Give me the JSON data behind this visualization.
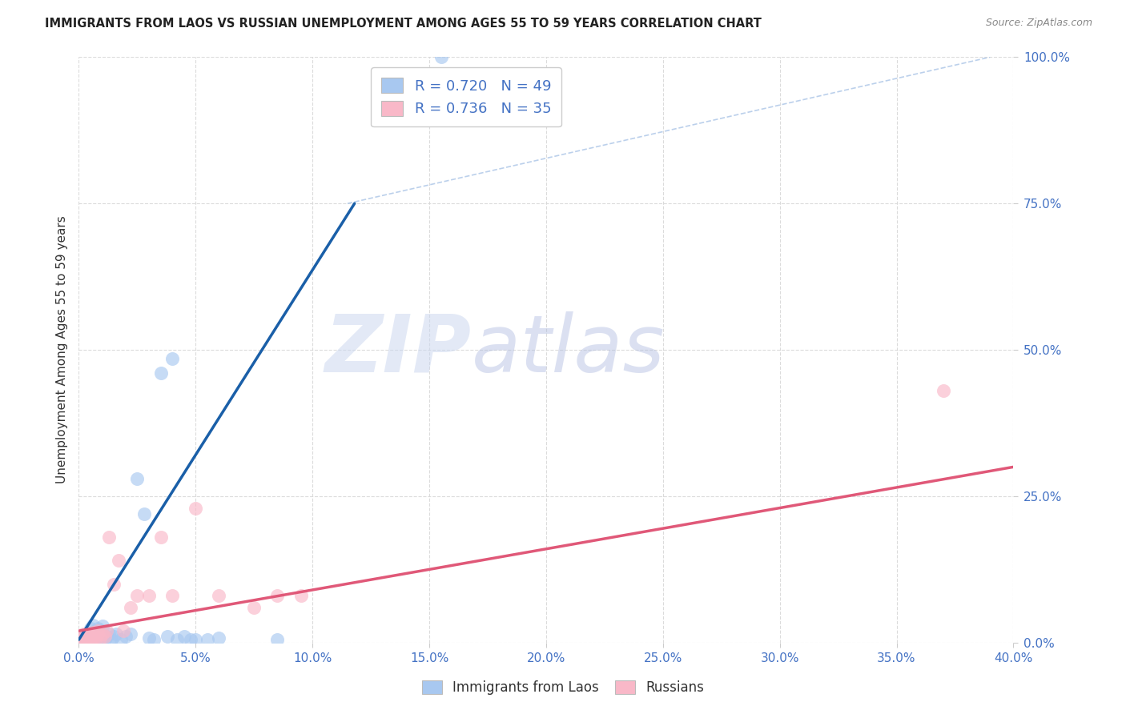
{
  "title": "IMMIGRANTS FROM LAOS VS RUSSIAN UNEMPLOYMENT AMONG AGES 55 TO 59 YEARS CORRELATION CHART",
  "source": "Source: ZipAtlas.com",
  "ylabel": "Unemployment Among Ages 55 to 59 years",
  "legend_entries": [
    {
      "label": "R = 0.720   N = 49",
      "color": "#a8c8f0"
    },
    {
      "label": "R = 0.736   N = 35",
      "color": "#f9b8c8"
    }
  ],
  "legend_labels": [
    "Immigrants from Laos",
    "Russians"
  ],
  "blue_scatter_x": [
    0.001,
    0.001,
    0.002,
    0.002,
    0.002,
    0.003,
    0.003,
    0.003,
    0.003,
    0.004,
    0.004,
    0.004,
    0.005,
    0.005,
    0.005,
    0.006,
    0.006,
    0.007,
    0.007,
    0.008,
    0.008,
    0.009,
    0.009,
    0.01,
    0.01,
    0.011,
    0.012,
    0.013,
    0.014,
    0.015,
    0.016,
    0.018,
    0.02,
    0.022,
    0.025,
    0.028,
    0.03,
    0.032,
    0.035,
    0.038,
    0.04,
    0.042,
    0.045,
    0.048,
    0.05,
    0.055,
    0.06,
    0.085,
    0.155
  ],
  "blue_scatter_y": [
    0.005,
    0.01,
    0.005,
    0.008,
    0.012,
    0.005,
    0.008,
    0.01,
    0.015,
    0.005,
    0.01,
    0.015,
    0.005,
    0.008,
    0.025,
    0.005,
    0.03,
    0.005,
    0.01,
    0.005,
    0.025,
    0.01,
    0.022,
    0.008,
    0.028,
    0.005,
    0.01,
    0.015,
    0.005,
    0.01,
    0.015,
    0.005,
    0.01,
    0.015,
    0.28,
    0.22,
    0.008,
    0.005,
    0.46,
    0.01,
    0.485,
    0.005,
    0.01,
    0.005,
    0.005,
    0.005,
    0.008,
    0.005,
    1.0
  ],
  "pink_scatter_x": [
    0.001,
    0.001,
    0.002,
    0.002,
    0.003,
    0.003,
    0.004,
    0.004,
    0.005,
    0.005,
    0.006,
    0.006,
    0.007,
    0.007,
    0.008,
    0.008,
    0.009,
    0.01,
    0.011,
    0.012,
    0.013,
    0.015,
    0.017,
    0.019,
    0.022,
    0.025,
    0.03,
    0.035,
    0.04,
    0.05,
    0.06,
    0.075,
    0.085,
    0.095,
    0.37
  ],
  "pink_scatter_y": [
    0.005,
    0.01,
    0.008,
    0.015,
    0.005,
    0.012,
    0.008,
    0.015,
    0.005,
    0.012,
    0.008,
    0.018,
    0.005,
    0.01,
    0.015,
    0.02,
    0.008,
    0.015,
    0.01,
    0.02,
    0.18,
    0.1,
    0.14,
    0.02,
    0.06,
    0.08,
    0.08,
    0.18,
    0.08,
    0.23,
    0.08,
    0.06,
    0.08,
    0.08,
    0.43
  ],
  "blue_line_x": [
    0.0,
    0.118
  ],
  "blue_line_y": [
    0.005,
    0.75
  ],
  "pink_line_x": [
    0.0,
    0.4
  ],
  "pink_line_y": [
    0.02,
    0.3
  ],
  "diag_line_x": [
    0.115,
    0.39
  ],
  "diag_line_y": [
    0.75,
    1.0
  ],
  "xlim": [
    0.0,
    0.4
  ],
  "ylim": [
    0.0,
    1.0
  ],
  "xtick_values": [
    0.0,
    0.05,
    0.1,
    0.15,
    0.2,
    0.25,
    0.3,
    0.35,
    0.4
  ],
  "ytick_values": [
    0.0,
    0.25,
    0.5,
    0.75,
    1.0
  ],
  "blue_scatter_color": "#a8c8f0",
  "pink_scatter_color": "#f9b8c8",
  "blue_line_color": "#1a5fa8",
  "pink_line_color": "#e05878",
  "diag_line_color": "#b0c8e8",
  "tick_label_color": "#4472c4",
  "watermark_zip": "ZIP",
  "watermark_atlas": "atlas",
  "background_color": "#ffffff",
  "grid_color": "#d8d8d8"
}
